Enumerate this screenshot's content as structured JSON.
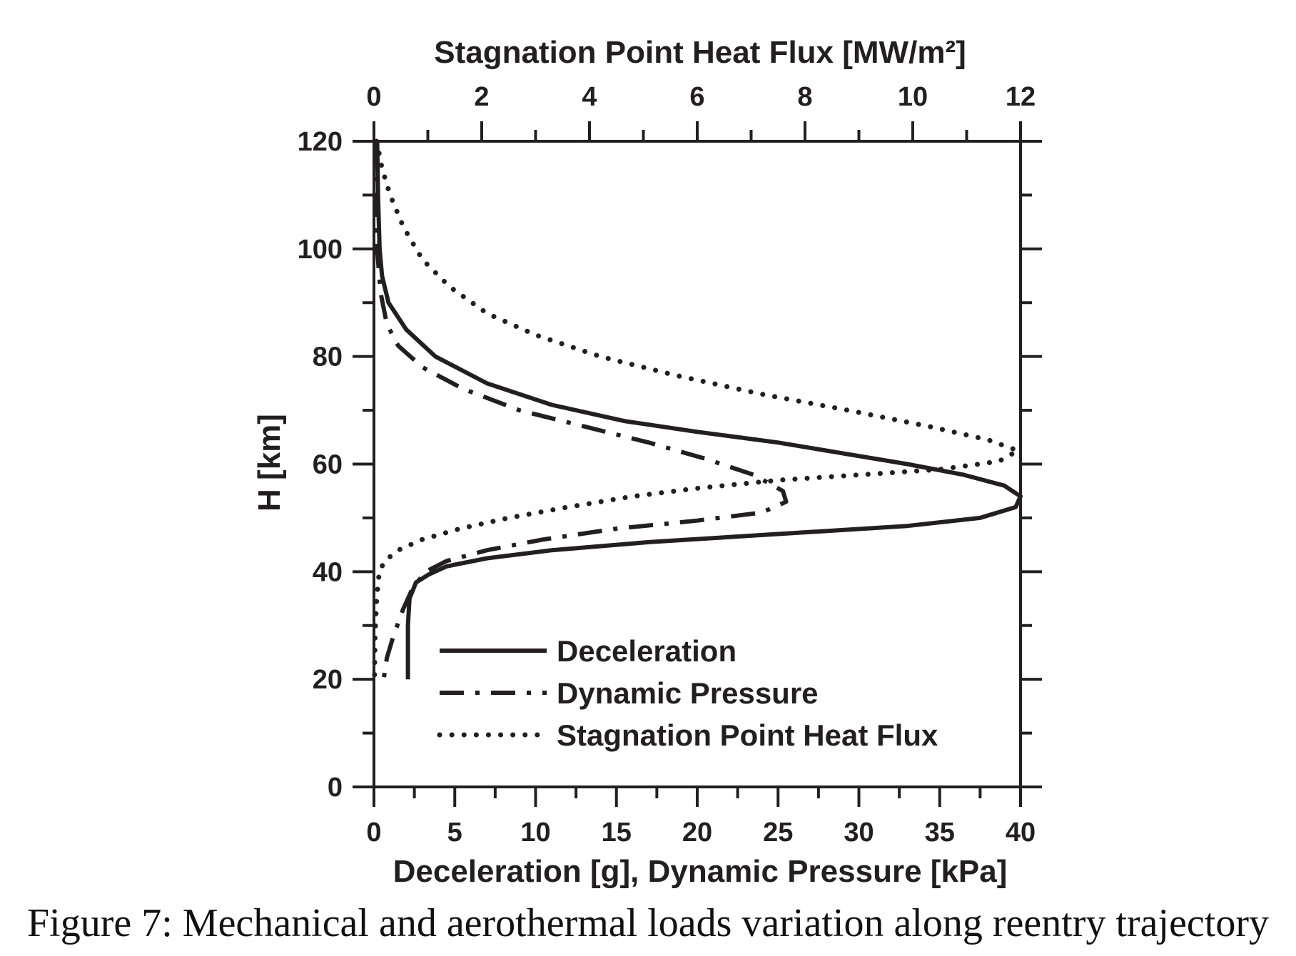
{
  "caption": "Figure 7: Mechanical and aerothermal loads variation along reentry trajectory",
  "chart_data": {
    "type": "line",
    "xlabel_bottom": "Deceleration [g], Dynamic Pressure [kPa]",
    "xlabel_top": "Stagnation Point Heat Flux [MW/m²]",
    "ylabel": "H [km]",
    "xlim_bottom": [
      0,
      40
    ],
    "xlim_top": [
      0,
      12
    ],
    "ylim": [
      0,
      120
    ],
    "x_ticks_bottom": [
      "0",
      "5",
      "10",
      "15",
      "20",
      "25",
      "30",
      "35",
      "40"
    ],
    "x_ticks_top": [
      "0",
      "2",
      "4",
      "6",
      "8",
      "10",
      "12"
    ],
    "y_ticks": [
      "0",
      "20",
      "40",
      "60",
      "80",
      "100",
      "120"
    ],
    "grid": false,
    "legend_position": "bottom-center",
    "series": [
      {
        "name": "Deceleration",
        "axis": "bottom",
        "style": "solid",
        "points": [
          [
            0.2,
            120
          ],
          [
            0.25,
            110
          ],
          [
            0.35,
            100
          ],
          [
            0.5,
            95
          ],
          [
            0.9,
            90
          ],
          [
            2,
            85
          ],
          [
            3.8,
            80
          ],
          [
            7,
            75
          ],
          [
            11,
            71
          ],
          [
            15.5,
            68
          ],
          [
            20,
            66
          ],
          [
            25,
            64
          ],
          [
            29,
            62
          ],
          [
            33,
            60
          ],
          [
            36.5,
            58
          ],
          [
            39,
            56
          ],
          [
            40,
            54
          ],
          [
            39.7,
            52
          ],
          [
            37.5,
            50
          ],
          [
            33,
            48.5
          ],
          [
            25,
            47
          ],
          [
            17,
            45.5
          ],
          [
            11,
            44
          ],
          [
            7,
            42.5
          ],
          [
            4.5,
            41
          ],
          [
            3.4,
            39.5
          ],
          [
            2.6,
            38
          ],
          [
            2.2,
            35
          ],
          [
            2.1,
            30
          ],
          [
            2.1,
            25
          ],
          [
            2.1,
            20
          ]
        ]
      },
      {
        "name": "Dynamic Pressure",
        "axis": "bottom",
        "style": "dashdot",
        "points": [
          [
            0.1,
            120
          ],
          [
            0.1,
            110
          ],
          [
            0.2,
            100
          ],
          [
            0.4,
            92
          ],
          [
            0.8,
            86
          ],
          [
            1.5,
            82
          ],
          [
            3,
            78
          ],
          [
            5.5,
            74
          ],
          [
            9,
            70
          ],
          [
            13,
            67
          ],
          [
            17,
            64
          ],
          [
            20.5,
            61
          ],
          [
            23.5,
            58
          ],
          [
            25.3,
            55
          ],
          [
            25.5,
            53
          ],
          [
            24,
            51
          ],
          [
            20,
            49.5
          ],
          [
            15,
            48
          ],
          [
            10.5,
            46
          ],
          [
            7,
            44
          ],
          [
            4.5,
            42
          ],
          [
            3.2,
            40
          ],
          [
            2.4,
            37
          ],
          [
            1.8,
            33
          ],
          [
            1.2,
            28
          ],
          [
            0.8,
            24
          ],
          [
            0.6,
            20
          ]
        ]
      },
      {
        "name": "Stagnation Point Heat Flux",
        "axis": "top",
        "style": "dotted",
        "points": [
          [
            0.05,
            120
          ],
          [
            0.15,
            115
          ],
          [
            0.3,
            110
          ],
          [
            0.55,
            104
          ],
          [
            0.9,
            98
          ],
          [
            1.4,
            93
          ],
          [
            2.1,
            88
          ],
          [
            3.0,
            84
          ],
          [
            4.2,
            80
          ],
          [
            5.6,
            76.5
          ],
          [
            7.2,
            73
          ],
          [
            8.8,
            70
          ],
          [
            10.3,
            67
          ],
          [
            11.4,
            64.5
          ],
          [
            11.95,
            62.5
          ],
          [
            11.6,
            60.5
          ],
          [
            10.5,
            59
          ],
          [
            9,
            58
          ],
          [
            7.5,
            57
          ],
          [
            6,
            55.5
          ],
          [
            4.8,
            54
          ],
          [
            3.6,
            52
          ],
          [
            2.5,
            50
          ],
          [
            1.6,
            48
          ],
          [
            0.9,
            46
          ],
          [
            0.45,
            44
          ],
          [
            0.2,
            42
          ],
          [
            0.1,
            40
          ],
          [
            0.05,
            35
          ],
          [
            0.02,
            28
          ],
          [
            0.01,
            20
          ]
        ]
      }
    ]
  }
}
